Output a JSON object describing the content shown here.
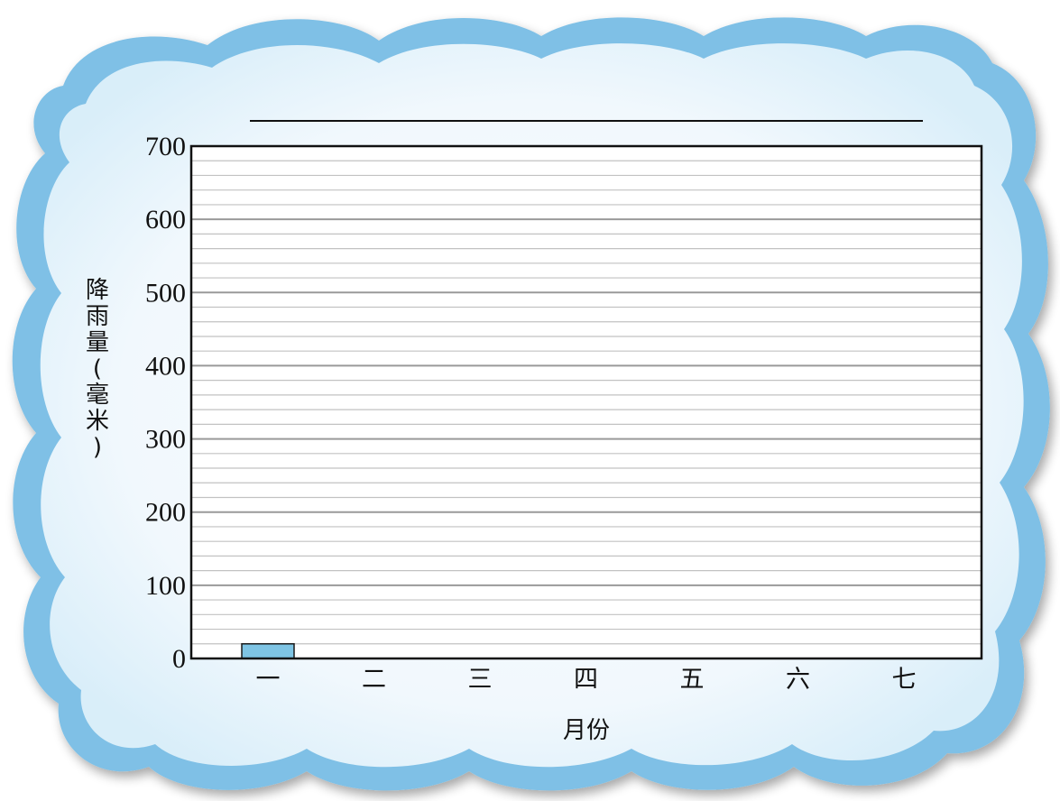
{
  "chart_data": {
    "type": "bar",
    "title": "",
    "xlabel": "月份",
    "ylabel": "降雨量(毫米)",
    "ylabel_chars": [
      "降",
      "雨",
      "量",
      "(",
      "毫",
      "米",
      ")"
    ],
    "categories": [
      "一",
      "二",
      "三",
      "四",
      "五",
      "六",
      "七"
    ],
    "values": [
      20,
      null,
      null,
      null,
      null,
      null,
      null
    ],
    "ylim": [
      0,
      700
    ],
    "yticks": [
      "0",
      "100",
      "200",
      "300",
      "400",
      "500",
      "600",
      "700"
    ],
    "grid": true,
    "legend": "none"
  },
  "colors": {
    "bar_fill": "#7ec4e4",
    "bar_stroke": "#1a1a1a",
    "cloud_edge": "#7fc0e6",
    "cloud_inner": "#f4f9fd",
    "grid_major": "#9a9a9a",
    "grid_minor": "#c2c2c2"
  }
}
